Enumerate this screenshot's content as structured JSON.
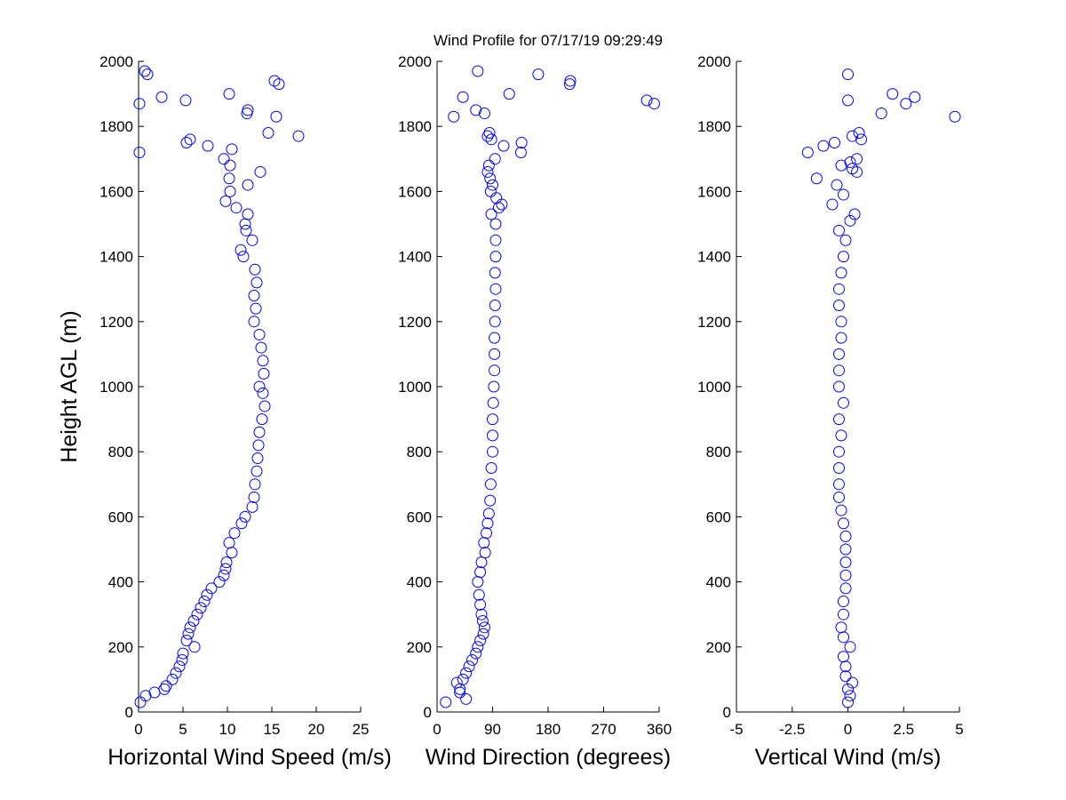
{
  "chart_data": [
    {
      "type": "scatter",
      "xlabel": "Horizontal Wind Speed (m/s)",
      "ylabel": "Height AGL (m)",
      "xlim": [
        0,
        25
      ],
      "ylim": [
        0,
        2000
      ],
      "xticks": [
        0,
        5,
        10,
        15,
        20,
        25
      ],
      "yticks": [
        0,
        200,
        400,
        600,
        800,
        1000,
        1200,
        1400,
        1600,
        1800,
        2000
      ],
      "series": [
        {
          "color": "#0000ff",
          "x": [
            0.2,
            0.8,
            1.8,
            2.9,
            3.1,
            3.8,
            4.2,
            4.6,
            4.9,
            5.0,
            6.3,
            5.4,
            5.6,
            5.8,
            6.2,
            6.6,
            7.0,
            7.4,
            7.7,
            8.2,
            9.1,
            9.6,
            9.8,
            9.9,
            10.5,
            10.2,
            10.8,
            11.6,
            12.0,
            12.8,
            13.0,
            13.1,
            13.3,
            13.4,
            13.5,
            13.6,
            13.9,
            14.2,
            14.0,
            13.6,
            14.1,
            14.0,
            13.8,
            13.6,
            13.0,
            13.2,
            13.0,
            13.3,
            13.1,
            11.8,
            11.5,
            12.8,
            12.1,
            12.0,
            12.3,
            11.0,
            9.8,
            10.3,
            12.3,
            10.2,
            13.7,
            10.3,
            9.6,
            0.1,
            10.5,
            7.8,
            5.4,
            5.8,
            18.0,
            14.6,
            15.5,
            12.2,
            12.3,
            0.1,
            5.3,
            2.6,
            10.2,
            15.8,
            15.3,
            1.0,
            0.7
          ],
          "values": [
            30,
            50,
            60,
            70,
            80,
            100,
            120,
            140,
            160,
            180,
            200,
            220,
            240,
            260,
            280,
            300,
            320,
            340,
            360,
            380,
            400,
            420,
            440,
            460,
            490,
            520,
            550,
            580,
            600,
            630,
            660,
            700,
            740,
            780,
            820,
            860,
            900,
            940,
            980,
            1000,
            1040,
            1080,
            1120,
            1160,
            1200,
            1240,
            1280,
            1320,
            1360,
            1400,
            1420,
            1450,
            1480,
            1500,
            1530,
            1550,
            1570,
            1600,
            1620,
            1640,
            1660,
            1680,
            1700,
            1720,
            1730,
            1740,
            1750,
            1760,
            1770,
            1780,
            1830,
            1840,
            1850,
            1870,
            1880,
            1890,
            1900,
            1930,
            1940,
            1960,
            1970
          ]
        }
      ]
    },
    {
      "type": "scatter",
      "title": "Wind Profile for  07/17/19 09:29:49",
      "xlabel": "Wind Direction (degrees)",
      "xlim": [
        0,
        360
      ],
      "ylim": [
        0,
        2000
      ],
      "xticks": [
        0,
        90,
        180,
        270,
        360
      ],
      "yticks": [
        0,
        200,
        400,
        600,
        800,
        1000,
        1200,
        1400,
        1600,
        1800,
        2000
      ],
      "series": [
        {
          "color": "#0000ff",
          "x": [
            14,
            47,
            37,
            37,
            32,
            42,
            47,
            52,
            57,
            63,
            66,
            70,
            75,
            77,
            74,
            72,
            70,
            68,
            66,
            70,
            72,
            78,
            76,
            80,
            82,
            84,
            86,
            87,
            88,
            90,
            90,
            90,
            91,
            92,
            93,
            93,
            93,
            94,
            94,
            95,
            94,
            95,
            95,
            95,
            88,
            100,
            105,
            96,
            87,
            90,
            86,
            82,
            84,
            94,
            136,
            108,
            137,
            88,
            82,
            85,
            27,
            77,
            63,
            352,
            340,
            42,
            117,
            215,
            216,
            164,
            66
          ],
          "values": [
            30,
            40,
            60,
            70,
            90,
            100,
            120,
            140,
            160,
            180,
            200,
            220,
            240,
            260,
            280,
            300,
            330,
            360,
            400,
            430,
            460,
            490,
            520,
            550,
            580,
            610,
            650,
            700,
            750,
            800,
            850,
            900,
            950,
            1000,
            1050,
            1100,
            1150,
            1200,
            1250,
            1300,
            1350,
            1400,
            1450,
            1500,
            1530,
            1550,
            1560,
            1580,
            1600,
            1620,
            1640,
            1660,
            1680,
            1700,
            1720,
            1740,
            1750,
            1760,
            1770,
            1780,
            1830,
            1840,
            1850,
            1870,
            1880,
            1890,
            1900,
            1930,
            1940,
            1960,
            1970
          ]
        }
      ]
    },
    {
      "type": "scatter",
      "xlabel": "Vertical Wind (m/s)",
      "xlim": [
        -5,
        5
      ],
      "ylim": [
        0,
        2000
      ],
      "xticks": [
        -5,
        -2.5,
        0,
        2.5,
        5
      ],
      "yticks": [
        0,
        200,
        400,
        600,
        800,
        1000,
        1200,
        1400,
        1600,
        1800,
        2000
      ],
      "series": [
        {
          "color": "#0000ff",
          "x": [
            0,
            0.1,
            0,
            0.2,
            -0.1,
            -0.1,
            -0.2,
            0.1,
            -0.2,
            -0.3,
            -0.2,
            -0.2,
            -0.1,
            -0.1,
            -0.1,
            -0.1,
            -0.1,
            -0.2,
            -0.3,
            -0.4,
            -0.4,
            -0.4,
            -0.4,
            -0.3,
            -0.4,
            -0.2,
            -0.4,
            -0.4,
            -0.4,
            -0.3,
            -0.3,
            -0.4,
            -0.4,
            -0.3,
            -0.2,
            -0.1,
            -0.4,
            0.1,
            0.3,
            -0.7,
            -0.2,
            -0.5,
            -1.4,
            0.4,
            0.2,
            -0.3,
            0.1,
            0.4,
            -1.8,
            -1.1,
            -0.6,
            0.6,
            0.2,
            0.5,
            4.8,
            1.5,
            2.6,
            0,
            3.0,
            2.0,
            0
          ],
          "values": [
            30,
            50,
            70,
            90,
            110,
            140,
            170,
            200,
            230,
            260,
            300,
            340,
            380,
            420,
            460,
            500,
            540,
            580,
            620,
            660,
            700,
            750,
            800,
            850,
            900,
            950,
            1000,
            1050,
            1100,
            1150,
            1200,
            1250,
            1300,
            1350,
            1400,
            1450,
            1480,
            1510,
            1530,
            1560,
            1590,
            1620,
            1640,
            1660,
            1670,
            1680,
            1690,
            1700,
            1720,
            1740,
            1750,
            1760,
            1770,
            1780,
            1830,
            1840,
            1870,
            1880,
            1890,
            1900,
            1960
          ]
        }
      ]
    }
  ]
}
